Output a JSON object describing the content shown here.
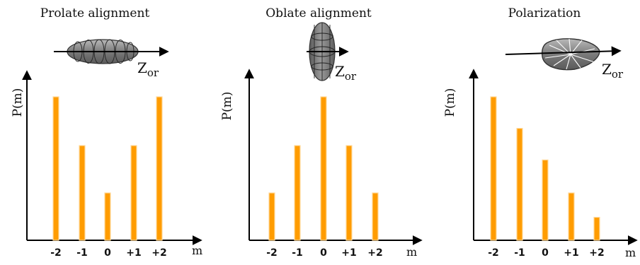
{
  "chart_data": [
    {
      "type": "bar",
      "title": "Prolate alignment",
      "xlabel": "m",
      "ylabel": "P(m)",
      "categories": [
        "-2",
        "-1",
        "0",
        "+1",
        "+2"
      ],
      "values": [
        1.0,
        0.66,
        0.33,
        0.66,
        1.0
      ],
      "axis_annotation": "Z",
      "axis_annotation_sub": "or",
      "inset_icon": "prolate-ellipsoid-icon"
    },
    {
      "type": "bar",
      "title": "Oblate alignment",
      "xlabel": "m",
      "ylabel": "P(m)",
      "categories": [
        "-2",
        "-1",
        "0",
        "+1",
        "+2"
      ],
      "values": [
        0.33,
        0.66,
        1.0,
        0.66,
        0.33
      ],
      "axis_annotation": "Z",
      "axis_annotation_sub": "or",
      "inset_icon": "oblate-ellipsoid-icon"
    },
    {
      "type": "bar",
      "title": "Polarization",
      "xlabel": "m",
      "ylabel": "P(m)",
      "categories": [
        "-2",
        "-1",
        "0",
        "+1",
        "+2"
      ],
      "values": [
        1.0,
        0.78,
        0.56,
        0.33,
        0.16
      ],
      "axis_annotation": "Z",
      "axis_annotation_sub": "or",
      "inset_icon": "polarized-egg-icon"
    }
  ],
  "colors": {
    "bar": "#ff9c00",
    "bar_edge": "#ffd89a",
    "axis": "#000000",
    "icon_fill": "#8a8a8a"
  }
}
